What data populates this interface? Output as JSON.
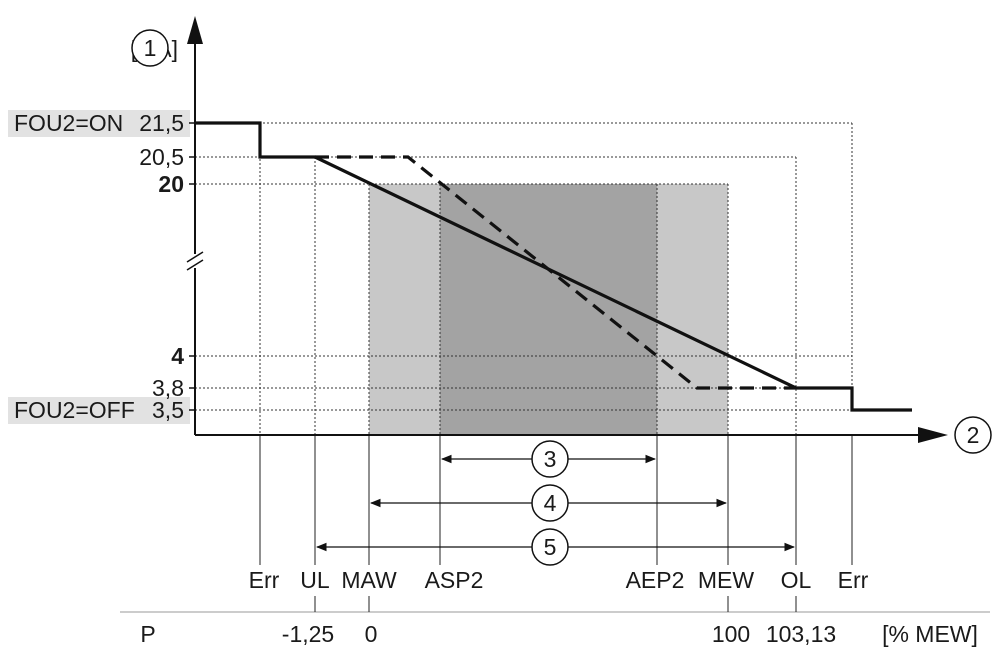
{
  "y_axis": {
    "unit": "[mA]",
    "badge": "1",
    "ticks": [
      {
        "key": "t215",
        "label": "21,5",
        "bold": false
      },
      {
        "key": "t205",
        "label": "20,5",
        "bold": false
      },
      {
        "key": "t20",
        "label": "20",
        "bold": true
      },
      {
        "key": "t4",
        "label": "4",
        "bold": true
      },
      {
        "key": "t38",
        "label": "3,8",
        "bold": false
      },
      {
        "key": "t35",
        "label": "3,5",
        "bold": false
      }
    ],
    "fou2_on": "FOU2=ON",
    "fou2_off": "FOU2=OFF"
  },
  "x_axis": {
    "badge": "2",
    "markers": [
      "Err",
      "UL",
      "MAW",
      "ASP2",
      "AEP2",
      "MEW",
      "OL",
      "Err"
    ],
    "p_label": "P",
    "p_values": [
      "-1,25",
      "0",
      "100",
      "103,13"
    ],
    "p_unit": "[% MEW]"
  },
  "ranges": [
    {
      "badge": "3",
      "from": "ASP2",
      "to": "AEP2"
    },
    {
      "badge": "4",
      "from": "MAW",
      "to": "MEW"
    },
    {
      "badge": "5",
      "from": "UL",
      "to": "OL"
    }
  ],
  "colors": {
    "range_light": "#c8c8c8",
    "range_dark": "#a3a3a3",
    "label_shade": "#e2e2e2",
    "line": "#111111"
  }
}
